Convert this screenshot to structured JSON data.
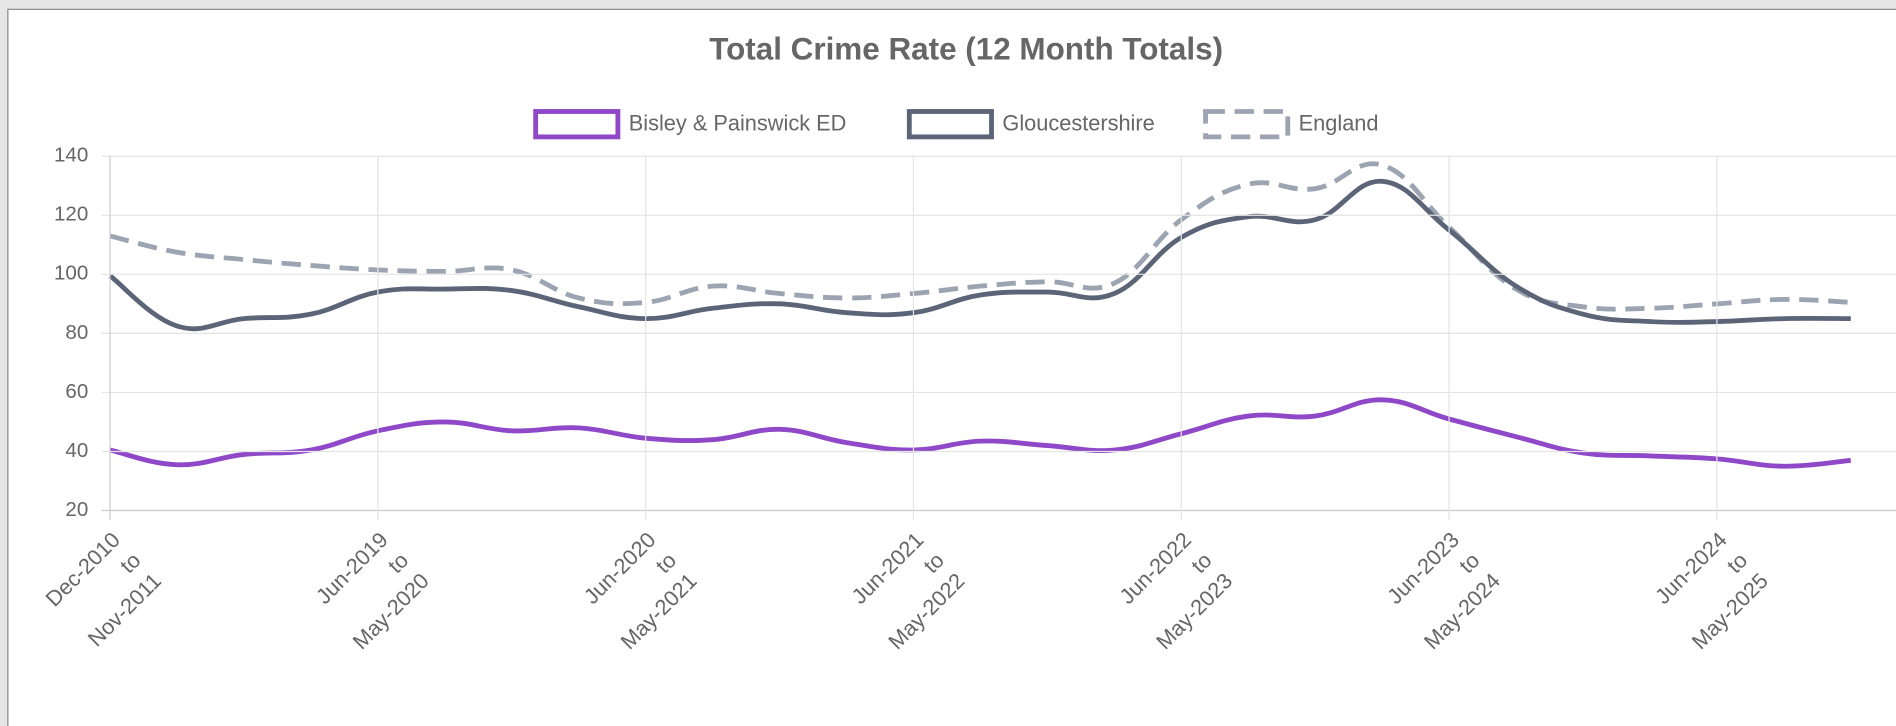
{
  "chart_data": {
    "type": "line",
    "title": "Total Crime Rate (12 Month Totals)",
    "categories": [
      [
        "Dec-2010",
        "to",
        "Nov-2011"
      ],
      null,
      null,
      null,
      [
        "Jun-2019",
        "to",
        "May-2020"
      ],
      null,
      null,
      null,
      [
        "Jun-2020",
        "to",
        "May-2021"
      ],
      null,
      null,
      null,
      [
        "Jun-2021",
        "to",
        "May-2022"
      ],
      null,
      null,
      null,
      [
        "Jun-2022",
        "to",
        "May-2023"
      ],
      null,
      null,
      null,
      [
        "Jun-2023",
        "to",
        "May-2024"
      ],
      null,
      null,
      null,
      [
        "Jun-2024",
        "to",
        "May-2025"
      ],
      null,
      null
    ],
    "series": [
      {
        "name": "Bisley & Painswick ED",
        "color": "#8e48c8",
        "dashed": false,
        "values": [
          40.5,
          35.5,
          39,
          40.5,
          47,
          50,
          47,
          48,
          44.5,
          44,
          47.5,
          43,
          40.5,
          43.5,
          42,
          40.5,
          46,
          52,
          52,
          57.5,
          51,
          45,
          39.5,
          38.5,
          37.5,
          35,
          37
        ]
      },
      {
        "name": "Gloucestershire",
        "color": "#5b6577",
        "dashed": false,
        "values": [
          99.5,
          82.5,
          85,
          86.5,
          94,
          95,
          94.5,
          89,
          85,
          88.5,
          90,
          87,
          87,
          93,
          94,
          93.5,
          112.5,
          119.5,
          118.5,
          131.5,
          115,
          96,
          86.5,
          84,
          84,
          85,
          85
        ]
      },
      {
        "name": "England",
        "color": "#9ca4b1",
        "dashed": true,
        "values": [
          113,
          107.5,
          105,
          103,
          101.5,
          101,
          101.5,
          92,
          90.5,
          96,
          93.5,
          92,
          93.5,
          96,
          97.5,
          97,
          118.5,
          130.5,
          129,
          137,
          116,
          95,
          89,
          88.5,
          90,
          91.5,
          90.5
        ]
      }
    ],
    "ylim": [
      20,
      140
    ],
    "yticks": [
      20,
      40,
      60,
      80,
      100,
      120,
      140
    ],
    "grid": true,
    "legend": "top"
  }
}
